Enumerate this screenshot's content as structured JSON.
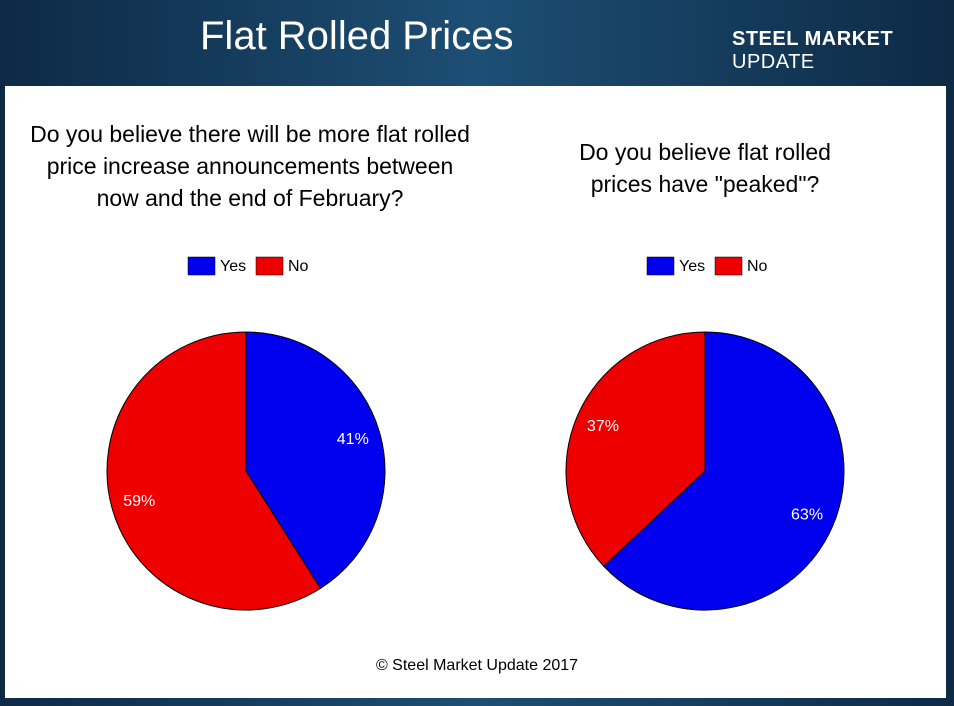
{
  "header": {
    "title": "Flat Rolled Prices",
    "logo_bold": "STEEL MARKET",
    "logo_light": "UPDATE"
  },
  "chart_data": [
    {
      "type": "pie",
      "title": "Do you believe there will be more flat rolled price increase announcements between now and the end of February?",
      "categories": [
        "Yes",
        "No"
      ],
      "values": [
        41,
        59
      ],
      "value_labels": [
        "41%",
        "59%"
      ],
      "colors": [
        "#0000ee",
        "#ee0000"
      ],
      "legend": "top"
    },
    {
      "type": "pie",
      "title": "Do you believe flat rolled prices have \"peaked\"?",
      "categories": [
        "Yes",
        "No"
      ],
      "values": [
        63,
        37
      ],
      "value_labels": [
        "63%",
        "37%"
      ],
      "colors": [
        "#0000ee",
        "#ee0000"
      ],
      "legend": "top"
    }
  ],
  "footer": "© Steel Market Update 2017"
}
